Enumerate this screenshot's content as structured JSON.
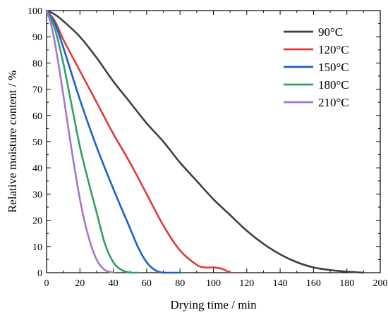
{
  "chart_data": {
    "type": "line",
    "xlabel": "Drying time / min",
    "ylabel": "Relative moisture content / %",
    "xlim": [
      0,
      200
    ],
    "ylim": [
      0,
      100
    ],
    "xticks": [
      0,
      20,
      40,
      60,
      80,
      100,
      120,
      140,
      160,
      180,
      200
    ],
    "yticks": [
      0,
      10,
      20,
      30,
      40,
      50,
      60,
      70,
      80,
      90,
      100
    ],
    "grid": false,
    "legend_position": "top-right",
    "series": [
      {
        "name": "90°C",
        "color": "#404040",
        "points": [
          [
            0,
            100
          ],
          [
            5,
            98.5
          ],
          [
            10,
            96
          ],
          [
            20,
            90
          ],
          [
            30,
            82
          ],
          [
            40,
            73
          ],
          [
            50,
            65
          ],
          [
            60,
            57
          ],
          [
            70,
            50
          ],
          [
            80,
            42
          ],
          [
            90,
            35
          ],
          [
            100,
            28
          ],
          [
            110,
            22
          ],
          [
            120,
            16
          ],
          [
            130,
            11
          ],
          [
            140,
            7
          ],
          [
            150,
            4
          ],
          [
            160,
            2
          ],
          [
            170,
            1
          ],
          [
            180,
            0.4
          ],
          [
            190,
            0
          ]
        ]
      },
      {
        "name": "120°C",
        "color": "#e03a3a",
        "points": [
          [
            0,
            100
          ],
          [
            5,
            96
          ],
          [
            10,
            89
          ],
          [
            20,
            77
          ],
          [
            30,
            65
          ],
          [
            40,
            53
          ],
          [
            50,
            42
          ],
          [
            60,
            30
          ],
          [
            70,
            18
          ],
          [
            80,
            8.5
          ],
          [
            90,
            3
          ],
          [
            95,
            2
          ],
          [
            100,
            2
          ],
          [
            105,
            1.5
          ],
          [
            110,
            0
          ]
        ]
      },
      {
        "name": "150°C",
        "color": "#1a5fd0",
        "points": [
          [
            0,
            100
          ],
          [
            5,
            95
          ],
          [
            10,
            86
          ],
          [
            20,
            66
          ],
          [
            30,
            48
          ],
          [
            40,
            32
          ],
          [
            50,
            17
          ],
          [
            55,
            9.5
          ],
          [
            60,
            4
          ],
          [
            65,
            1
          ],
          [
            70,
            0
          ],
          [
            80,
            0
          ]
        ]
      },
      {
        "name": "180°C",
        "color": "#2fa062",
        "points": [
          [
            0,
            100
          ],
          [
            5,
            93
          ],
          [
            10,
            80
          ],
          [
            15,
            64
          ],
          [
            20,
            48
          ],
          [
            25,
            35
          ],
          [
            30,
            23
          ],
          [
            35,
            11
          ],
          [
            40,
            4
          ],
          [
            45,
            1
          ],
          [
            50,
            0
          ],
          [
            55,
            0
          ]
        ]
      },
      {
        "name": "210°C",
        "color": "#a774d4",
        "points": [
          [
            0,
            100
          ],
          [
            3,
            94
          ],
          [
            6,
            84
          ],
          [
            10,
            68
          ],
          [
            15,
            47
          ],
          [
            20,
            28
          ],
          [
            25,
            14
          ],
          [
            30,
            5
          ],
          [
            35,
            1
          ],
          [
            40,
            0
          ]
        ]
      }
    ]
  }
}
